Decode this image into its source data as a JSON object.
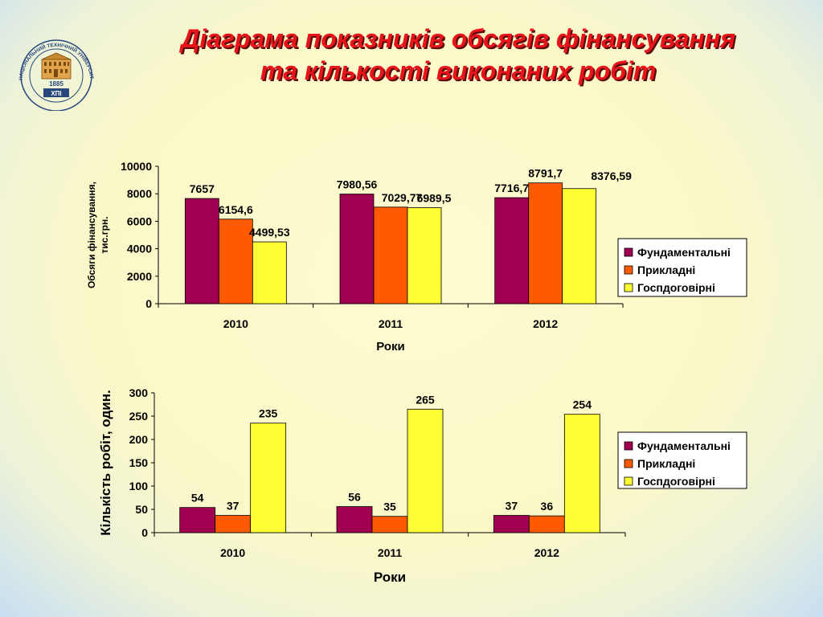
{
  "slide": {
    "title_line1": "Діаграма показників обсягів фінансування",
    "title_line2": "та кількості виконаних робіт",
    "logo": {
      "ring_text": "НАЦІОНАЛЬНИЙ ТЕХНІЧНИЙ УНІВЕРСИТЕТ «ХАРКІВСЬКИЙ ПОЛІТЕХНІЧНИЙ ІНСТИТУТ»",
      "year": "1885",
      "abbr": "ХПІ"
    }
  },
  "colors": {
    "title": "#e8141a",
    "series": [
      "#a0004f",
      "#ff5a00",
      "#ffff33"
    ]
  },
  "chart_data": [
    {
      "type": "bar",
      "categories": [
        "2010",
        "2011",
        "2012"
      ],
      "series": [
        {
          "name": "Фундаментальні",
          "values": [
            7657,
            7980.56,
            7716.7
          ],
          "labels": [
            "7657",
            "7980,56",
            "7716,7"
          ]
        },
        {
          "name": "Прикладні",
          "values": [
            6154.6,
            7029.77,
            8791.7
          ],
          "labels": [
            "6154,6",
            "7029,77",
            "8791,7"
          ]
        },
        {
          "name": "Госпдоговірні",
          "values": [
            4499.53,
            6989.5,
            8376.59
          ],
          "labels": [
            "4499,53",
            "6989,5",
            "8376,59"
          ]
        }
      ],
      "ylabel_line1": "Обсяги фінансування,",
      "ylabel_line2": "тис.грн.",
      "xlabel": "Роки",
      "ylim": [
        0,
        10000
      ],
      "yticks": [
        "0",
        "2000",
        "4000",
        "6000",
        "8000",
        "10000"
      ],
      "legend_position": "right"
    },
    {
      "type": "bar",
      "categories": [
        "2010",
        "2011",
        "2012"
      ],
      "series": [
        {
          "name": "Фундаментальні",
          "values": [
            54,
            56,
            37
          ],
          "labels": [
            "54",
            "56",
            "37"
          ]
        },
        {
          "name": "Прикладні",
          "values": [
            37,
            35,
            36
          ],
          "labels": [
            "37",
            "35",
            "36"
          ]
        },
        {
          "name": "Госпдоговірні",
          "values": [
            235,
            265,
            254
          ],
          "labels": [
            "235",
            "265",
            "254"
          ]
        }
      ],
      "ylabel": "Кількість робіт, один.",
      "xlabel": "Роки",
      "ylim": [
        0,
        300
      ],
      "yticks": [
        "0",
        "50",
        "100",
        "150",
        "200",
        "250",
        "300"
      ],
      "legend_position": "right"
    }
  ]
}
